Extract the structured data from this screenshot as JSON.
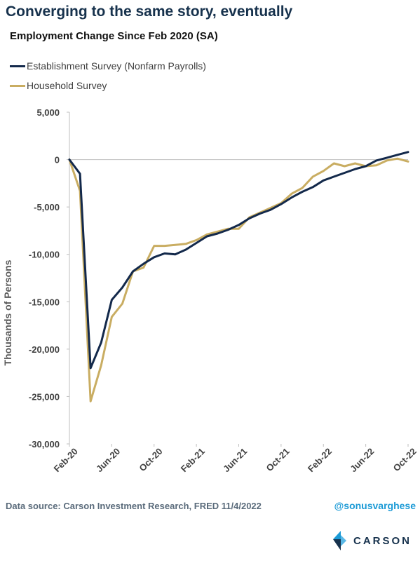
{
  "headline": "Converging to the same story, eventually",
  "footer": {
    "source": "Data source: Carson Investment Research, FRED   11/4/2022",
    "handle": "@sonusvarghese",
    "brand": "CARSON"
  },
  "colors": {
    "headline": "#17324d",
    "establishment": "#13294b",
    "household": "#c9ad62",
    "handle": "#1b9ad6",
    "logo_dark": "#17324d",
    "logo_blue": "#1b9ad6"
  },
  "chart_data": {
    "type": "line",
    "title": "Employment Change Since Feb 2020 (SA)",
    "ylabel": "Thousands of Persons",
    "xlabel": "",
    "ylim": [
      -30000,
      5000
    ],
    "yticks": [
      5000,
      0,
      -5000,
      -10000,
      -15000,
      -20000,
      -25000,
      -30000
    ],
    "ytick_labels": [
      "5,000",
      "0",
      "-5,000",
      "-10,000",
      "-15,000",
      "-20,000",
      "-25,000",
      "-30,000"
    ],
    "xtick_labels": [
      "Feb-20",
      "Jun-20",
      "Oct-20",
      "Feb-21",
      "Jun-21",
      "Oct-21",
      "Feb-22",
      "Jun-22",
      "Oct-22"
    ],
    "grid": false,
    "legend_position": "top-left",
    "x": [
      "Feb-20",
      "Mar-20",
      "Apr-20",
      "May-20",
      "Jun-20",
      "Jul-20",
      "Aug-20",
      "Sep-20",
      "Oct-20",
      "Nov-20",
      "Dec-20",
      "Jan-21",
      "Feb-21",
      "Mar-21",
      "Apr-21",
      "May-21",
      "Jun-21",
      "Jul-21",
      "Aug-21",
      "Sep-21",
      "Oct-21",
      "Nov-21",
      "Dec-21",
      "Jan-22",
      "Feb-22",
      "Mar-22",
      "Apr-22",
      "May-22",
      "Jun-22",
      "Jul-22",
      "Aug-22",
      "Sep-22",
      "Oct-22"
    ],
    "series": [
      {
        "name": "Establishment Survey (Nonfarm Payrolls)",
        "color": "#13294b",
        "values": [
          0,
          -1500,
          -22000,
          -19300,
          -14800,
          -13500,
          -11800,
          -11000,
          -10300,
          -9900,
          -10000,
          -9500,
          -8800,
          -8100,
          -7800,
          -7400,
          -6900,
          -6200,
          -5700,
          -5300,
          -4700,
          -4000,
          -3400,
          -2900,
          -2200,
          -1800,
          -1400,
          -1000,
          -700,
          -100,
          200,
          500,
          800
        ]
      },
      {
        "name": "Household Survey",
        "color": "#c9ad62",
        "values": [
          0,
          -3300,
          -25500,
          -21700,
          -16600,
          -15200,
          -11800,
          -11400,
          -9100,
          -9100,
          -9000,
          -8900,
          -8500,
          -7900,
          -7600,
          -7300,
          -7300,
          -6100,
          -5600,
          -5100,
          -4600,
          -3600,
          -3000,
          -1800,
          -1200,
          -400,
          -700,
          -400,
          -700,
          -600,
          -100,
          100,
          -200
        ]
      }
    ]
  }
}
